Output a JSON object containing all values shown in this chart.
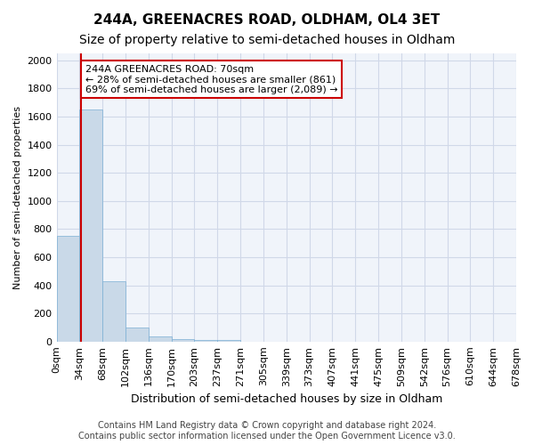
{
  "title": "244A, GREENACRES ROAD, OLDHAM, OL4 3ET",
  "subtitle": "Size of property relative to semi-detached houses in Oldham",
  "xlabel": "Distribution of semi-detached houses by size in Oldham",
  "ylabel": "Number of semi-detached properties",
  "bin_labels": [
    "0sqm",
    "34sqm",
    "68sqm",
    "102sqm",
    "136sqm",
    "170sqm",
    "203sqm",
    "237sqm",
    "271sqm",
    "305sqm",
    "339sqm",
    "373sqm",
    "407sqm",
    "441sqm",
    "475sqm",
    "509sqm",
    "542sqm",
    "576sqm",
    "610sqm",
    "644sqm",
    "678sqm"
  ],
  "bar_heights": [
    750,
    1650,
    430,
    100,
    35,
    20,
    10,
    10,
    0,
    0,
    0,
    0,
    0,
    0,
    0,
    0,
    0,
    0,
    0,
    0
  ],
  "bar_color": "#c9d9e8",
  "bar_edge_color": "#7bafd4",
  "grid_color": "#d0d8e8",
  "background_color": "#f0f4fa",
  "vline_color": "#cc0000",
  "annotation_text": "244A GREENACRES ROAD: 70sqm\n← 28% of semi-detached houses are smaller (861)\n69% of semi-detached houses are larger (2,089) →",
  "annotation_box_color": "#ffffff",
  "annotation_border_color": "#cc0000",
  "ylim": [
    0,
    2050
  ],
  "yticks": [
    0,
    200,
    400,
    600,
    800,
    1000,
    1200,
    1400,
    1600,
    1800,
    2000
  ],
  "footer_text": "Contains HM Land Registry data © Crown copyright and database right 2024.\nContains public sector information licensed under the Open Government Licence v3.0.",
  "title_fontsize": 11,
  "subtitle_fontsize": 10,
  "xlabel_fontsize": 9,
  "ylabel_fontsize": 8,
  "tick_fontsize": 8,
  "annotation_fontsize": 8,
  "footer_fontsize": 7
}
